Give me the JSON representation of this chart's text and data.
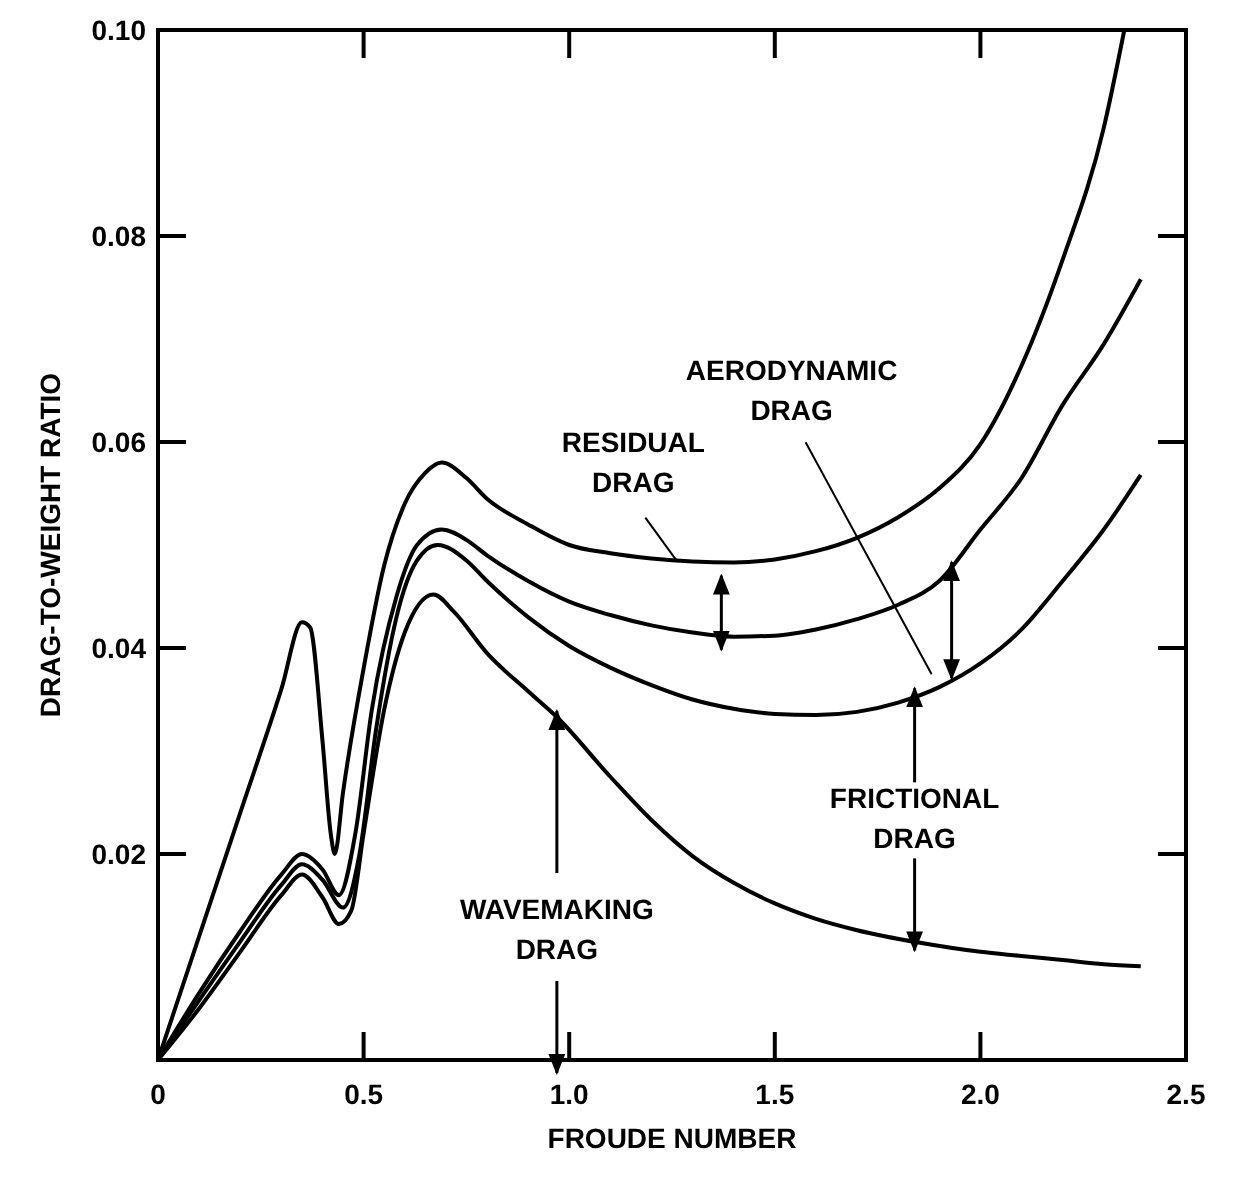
{
  "chart_data": {
    "type": "line",
    "xlabel": "FROUDE NUMBER",
    "ylabel": "DRAG-TO-WEIGHT RATIO",
    "xlim": [
      0,
      2.5
    ],
    "ylim": [
      0,
      0.1
    ],
    "xticks": [
      0,
      0.5,
      {
        "value": 1,
        "label": "1.0"
      },
      1.5,
      {
        "value": 2,
        "label": "2.0"
      },
      2.5
    ],
    "yticks": [
      {
        "value": 0,
        "label": null
      },
      0.02,
      0.04,
      0.06,
      0.08,
      {
        "value": 0.1,
        "label": "0.10"
      }
    ],
    "marker": "none",
    "line_style": "solid",
    "series": [
      {
        "color": "#000000",
        "x": [
          0,
          0.1,
          0.2,
          0.3,
          0.35,
          0.37,
          0.4,
          0.42,
          0.43,
          0.45,
          0.5,
          0.55,
          0.6,
          0.65,
          0.69,
          0.75,
          0.8,
          0.9,
          1.0,
          1.1,
          1.2,
          1.3,
          1.4,
          1.5,
          1.6,
          1.7,
          1.8,
          1.9,
          2.0,
          2.1,
          2.2,
          2.3,
          2.35
        ],
        "values": [
          0,
          0.012,
          0.024,
          0.036,
          0.0425,
          0.042,
          0.031,
          0.022,
          0.02,
          0.026,
          0.038,
          0.048,
          0.054,
          0.057,
          0.058,
          0.0565,
          0.0545,
          0.052,
          0.05,
          0.0492,
          0.0487,
          0.0484,
          0.0483,
          0.0486,
          0.0494,
          0.0507,
          0.0527,
          0.0555,
          0.0598,
          0.0674,
          0.0777,
          0.0905,
          0.1
        ]
      },
      {
        "color": "#000000",
        "x": [
          0,
          0.1,
          0.2,
          0.3,
          0.35,
          0.4,
          0.44,
          0.48,
          0.52,
          0.58,
          0.63,
          0.69,
          0.75,
          0.8,
          0.9,
          1.0,
          1.1,
          1.2,
          1.3,
          1.4,
          1.5,
          1.6,
          1.7,
          1.8,
          1.9,
          2.0,
          2.1,
          2.2,
          2.3,
          2.39
        ],
        "values": [
          0,
          0.0065,
          0.0125,
          0.018,
          0.02,
          0.0185,
          0.016,
          0.022,
          0.034,
          0.045,
          0.05,
          0.0515,
          0.0505,
          0.049,
          0.0465,
          0.0445,
          0.0432,
          0.0422,
          0.0415,
          0.0411,
          0.0412,
          0.0418,
          0.0428,
          0.0442,
          0.0465,
          0.0515,
          0.0565,
          0.0636,
          0.0695,
          0.0758
        ]
      },
      {
        "color": "#000000",
        "x": [
          0,
          0.1,
          0.2,
          0.3,
          0.35,
          0.4,
          0.45,
          0.49,
          0.53,
          0.58,
          0.63,
          0.68,
          0.75,
          0.8,
          0.9,
          1.0,
          1.1,
          1.2,
          1.3,
          1.4,
          1.5,
          1.6,
          1.7,
          1.8,
          1.9,
          2.0,
          2.1,
          2.2,
          2.3,
          2.39
        ],
        "values": [
          0,
          0.0058,
          0.0115,
          0.017,
          0.019,
          0.0175,
          0.0148,
          0.02,
          0.032,
          0.043,
          0.0485,
          0.05,
          0.0485,
          0.0465,
          0.043,
          0.0402,
          0.0381,
          0.0364,
          0.035,
          0.0341,
          0.0336,
          0.0335,
          0.0338,
          0.0347,
          0.0362,
          0.0385,
          0.0418,
          0.0465,
          0.0515,
          0.0568
        ]
      },
      {
        "color": "#000000",
        "x": [
          0,
          0.1,
          0.2,
          0.3,
          0.35,
          0.4,
          0.44,
          0.47,
          0.5,
          0.55,
          0.6,
          0.67,
          0.72,
          0.8,
          0.9,
          0.97,
          1.1,
          1.2,
          1.3,
          1.4,
          1.5,
          1.6,
          1.7,
          1.85,
          2.0,
          2.1,
          2.2,
          2.3,
          2.39
        ],
        "values": [
          0,
          0.005,
          0.0105,
          0.016,
          0.018,
          0.0158,
          0.0132,
          0.0145,
          0.022,
          0.034,
          0.0415,
          0.0452,
          0.0435,
          0.0395,
          0.0358,
          0.0333,
          0.0275,
          0.0233,
          0.0198,
          0.0172,
          0.0152,
          0.0137,
          0.0126,
          0.0114,
          0.0105,
          0.0101,
          0.0097,
          0.0093,
          0.0091
        ]
      }
    ],
    "annotations": [
      "RESIDUAL\nDRAG",
      "AERODYNAMIC\nDRAG",
      {
        "text": "FRICTIONAL\nDRAG",
        "x": 1.84,
        "y": 0.0355
      },
      {
        "text": "WAVEMAKING\nDRAG",
        "x": 0.97,
        "y": 0.0333
      }
    ]
  }
}
